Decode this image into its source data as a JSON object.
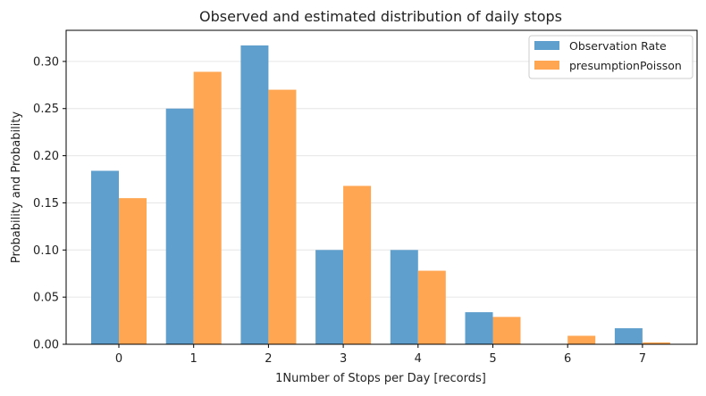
{
  "chart_data": {
    "type": "bar",
    "title": "Observed and estimated distribution of daily stops",
    "xlabel": "1Number of Stops per Day [records]",
    "ylabel": "Probability and Probability",
    "categories": [
      "0",
      "1",
      "2",
      "3",
      "4",
      "5",
      "6",
      "7"
    ],
    "series": [
      {
        "name": "Observation Rate",
        "color": "#5f9fcd",
        "values": [
          0.184,
          0.25,
          0.317,
          0.1,
          0.1,
          0.034,
          0.0,
          0.017
        ]
      },
      {
        "name": "presumptionPoisson",
        "color": "#ffa652",
        "values": [
          0.155,
          0.289,
          0.27,
          0.168,
          0.078,
          0.029,
          0.009,
          0.002
        ]
      }
    ],
    "ylim": [
      0,
      0.333
    ],
    "yticks": [
      0.0,
      0.05,
      0.1,
      0.15,
      0.2,
      0.25,
      0.3
    ],
    "ytick_labels": [
      "0.00",
      "0.05",
      "0.10",
      "0.15",
      "0.20",
      "0.25",
      "0.30"
    ],
    "grid": "y-only",
    "legend_position": "top-right"
  }
}
